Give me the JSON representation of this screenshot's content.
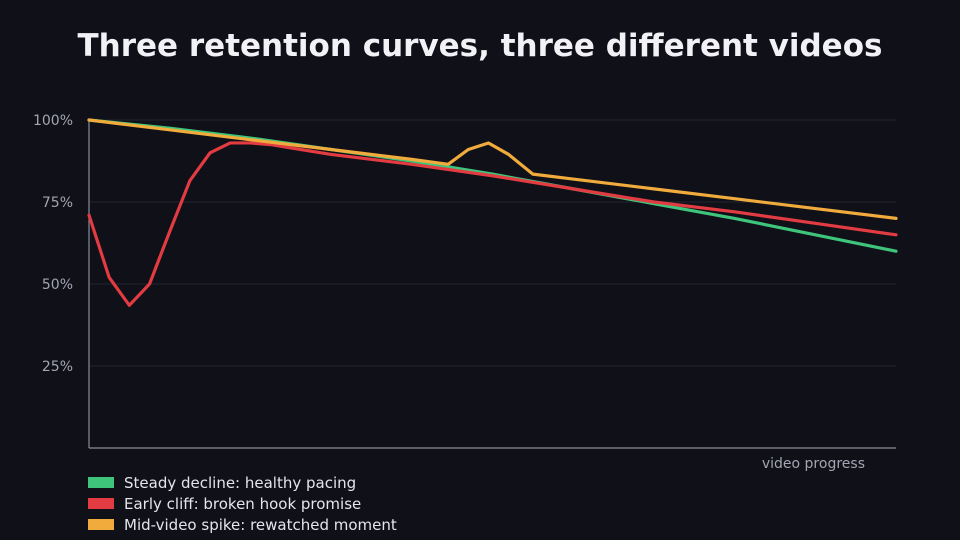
{
  "chart_data": {
    "type": "line",
    "title": "Three retention curves, three different videos",
    "xlabel": "video progress",
    "ylabel": "",
    "xlim": [
      0,
      100
    ],
    "ylim": [
      0,
      100
    ],
    "yticks": [
      25,
      50,
      75,
      100
    ],
    "ytick_labels": [
      "25%",
      "50%",
      "75%",
      "100%"
    ],
    "grid": "horizontal",
    "legend_position": "bottom-left",
    "series": [
      {
        "name": "Steady decline: healthy pacing",
        "color": "#3ec47b",
        "x": [
          0,
          10,
          20,
          30,
          40,
          50,
          60,
          70,
          80,
          90,
          100
        ],
        "y": [
          100,
          97.5,
          94.5,
          91,
          87.5,
          83.5,
          79,
          74.5,
          70,
          65,
          60
        ]
      },
      {
        "name": "Early cliff: broken hook promise",
        "color": "#e23b42",
        "x": [
          0,
          2.5,
          5,
          7.5,
          10,
          12.5,
          15,
          17.5,
          20,
          22.5,
          25,
          30,
          40,
          50,
          60,
          70,
          80,
          90,
          100
        ],
        "y": [
          71,
          52,
          43.5,
          50,
          66,
          81.5,
          90,
          93,
          93,
          92.5,
          91.5,
          89.5,
          86.5,
          83,
          79,
          75,
          72,
          68.5,
          65
        ]
      },
      {
        "name": "Mid-video spike: rewatched moment",
        "color": "#f0ab3c",
        "x": [
          0,
          10,
          20,
          30,
          40,
          44.5,
          47,
          49.5,
          52,
          55,
          60,
          70,
          80,
          90,
          100
        ],
        "y": [
          100,
          97,
          94,
          91,
          88,
          86.5,
          91,
          93,
          89.5,
          83.5,
          82,
          79,
          76,
          73,
          70
        ]
      }
    ]
  }
}
